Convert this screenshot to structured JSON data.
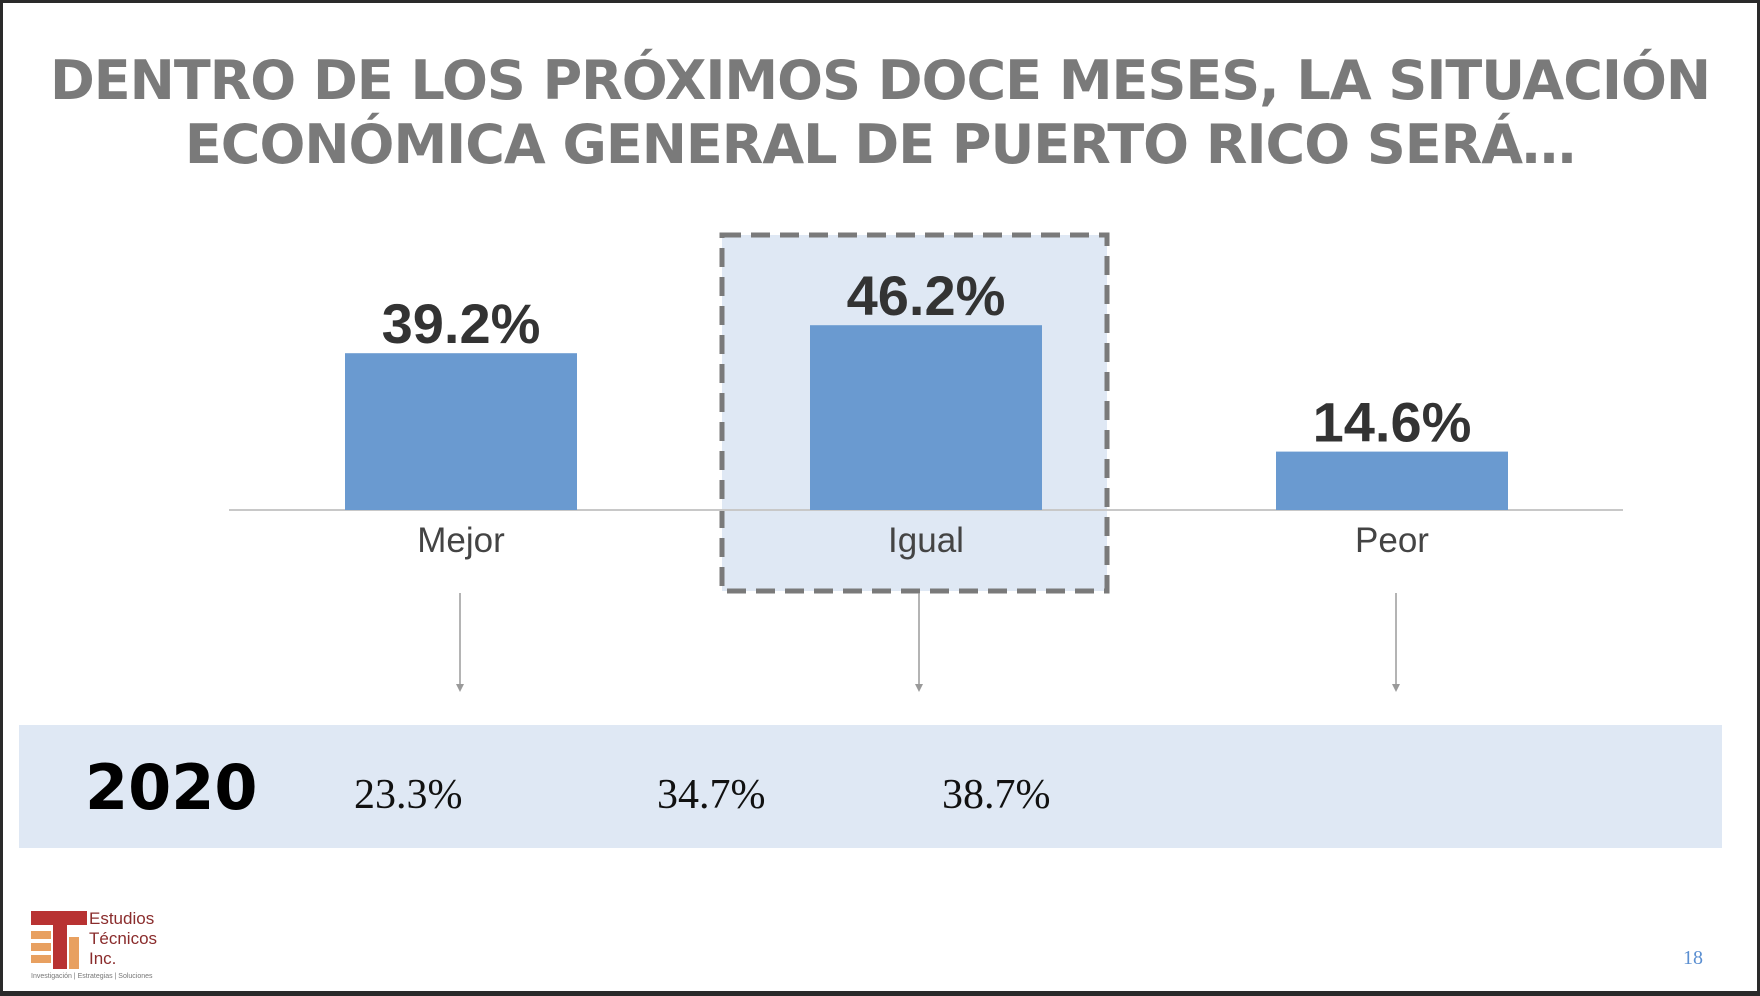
{
  "title": {
    "line1": "DENTRO DE LOS PRÓXIMOS DOCE MESES, LA SITUACIÓN",
    "line2": "ECONÓMICA GENERAL DE PUERTO RICO SERÁ…"
  },
  "chart_data": {
    "type": "bar",
    "categories": [
      "Mejor",
      "Igual",
      "Peor"
    ],
    "values": [
      39.2,
      46.2,
      14.6
    ],
    "value_labels": [
      "39.2%",
      "46.2%",
      "14.6%"
    ],
    "highlighted_category": "Igual",
    "ylim": [
      0,
      55
    ],
    "grid": false,
    "color": "#6a9ad0"
  },
  "comparison": {
    "year": "2020",
    "values": [
      "23.3%",
      "34.7%",
      "38.7%"
    ]
  },
  "logo": {
    "line1": "Estudios",
    "line2": "Técnicos",
    "line3": "Inc.",
    "tagline": "Investigación | Estrategias | Soluciones"
  },
  "page_number": "18",
  "colors": {
    "bar": "#6a9ad0",
    "highlight": "#dfe8f4",
    "title": "#7a7a7a",
    "logo_red": "#b83232",
    "logo_orange": "#e8a060"
  }
}
